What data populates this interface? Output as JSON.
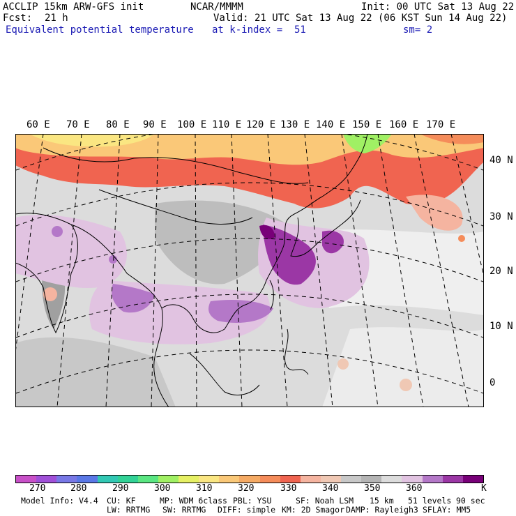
{
  "header": {
    "model": "ACCLIP 15km ARW-GFS init",
    "center": "NCAR/MMMM",
    "init": "Init: 00 UTC Sat 13 Aug 22",
    "fcst_label": "Fcst:",
    "fcst_value": "21 h",
    "valid": "Valid: 21 UTC Sat 13 Aug 22 (06 KST Sun 14 Aug 22)",
    "field": "Equivalent potential temperature",
    "level": "at k-index =  51",
    "smoothing": "sm= 2"
  },
  "map": {
    "lon_labels": [
      "60 E",
      "70 E",
      "80 E",
      "90 E",
      "100 E",
      "110 E",
      "120 E",
      "130 E",
      "140 E",
      "150 E",
      "160 E",
      "170 E"
    ],
    "lat_labels": [
      "40 N",
      "30 N",
      "20 N",
      "10 N",
      "0"
    ]
  },
  "colorbar": {
    "colors": [
      "#c850c8",
      "#a050d8",
      "#7878e6",
      "#5a78e6",
      "#32c8b4",
      "#32d296",
      "#5ae682",
      "#a0f064",
      "#e6f064",
      "#fae682",
      "#fac878",
      "#f5aa64",
      "#f58c5a",
      "#f06450",
      "#f5b4a0",
      "#f0c8b4",
      "#c8c8c8",
      "#b4b4b4",
      "#dcdcdc",
      "#e1c3e1",
      "#b478c8",
      "#9b37a5",
      "#780078"
    ],
    "ticks": [
      "270",
      "280",
      "290",
      "300",
      "310",
      "320",
      "330",
      "340",
      "350",
      "360"
    ],
    "unit": "K"
  },
  "footer": {
    "line1": [
      "Model Info: V4.4",
      "CU: KF",
      "MP: WDM 6class",
      "PBL: YSU",
      "SF: Noah LSM",
      "15 km",
      "51 levels",
      "90 sec"
    ],
    "line2": [
      "LW: RRTMG",
      "SW: RRTMG",
      "DIFF: simple",
      "KM: 2D Smagor",
      "DAMP: Rayleigh3",
      "SFLAY: MM5"
    ]
  }
}
